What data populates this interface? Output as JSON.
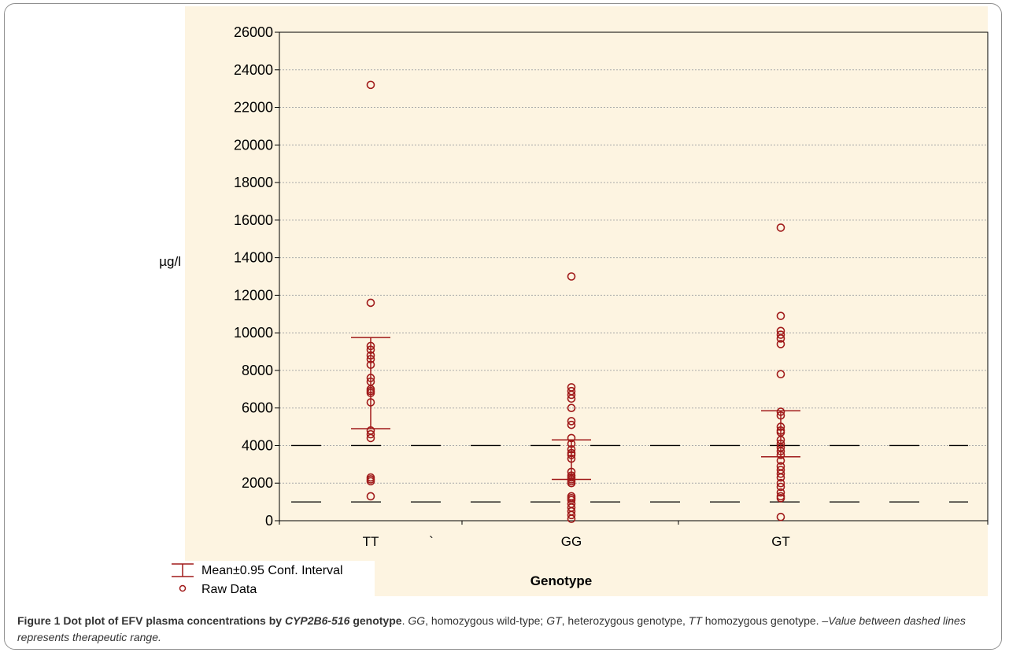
{
  "chart_data": {
    "type": "scatter",
    "title": "",
    "xlabel": "Genotype",
    "ylabel": "µg/l",
    "categories": [
      "TT",
      "GG",
      "GT"
    ],
    "ylim": [
      0,
      26000
    ],
    "yticks": [
      0,
      2000,
      4000,
      6000,
      8000,
      10000,
      12000,
      14000,
      16000,
      18000,
      20000,
      22000,
      24000,
      26000
    ],
    "grid": true,
    "stray_mark": "`",
    "reference_lines": [
      4000,
      1000
    ],
    "colors": {
      "background": "#fdf4e1",
      "points": "#a01a1a",
      "grid": "#aaaaaa",
      "axis": "#000000",
      "dashes": "#000000"
    },
    "legend": {
      "placement": "bottom-left",
      "entries": [
        {
          "marker": "error-bar",
          "label": "Mean±0.95 Conf. Interval"
        },
        {
          "marker": "circle",
          "label": "Raw Data"
        }
      ]
    },
    "series": [
      {
        "category": "TT",
        "raw": [
          23200,
          11600,
          9300,
          9100,
          8800,
          8600,
          8300,
          7600,
          7400,
          7000,
          6900,
          6800,
          6300,
          4800,
          4600,
          4400,
          2300,
          2200,
          2100,
          1300
        ],
        "mean": 7350,
        "ci": [
          4900,
          9750
        ]
      },
      {
        "category": "GG",
        "raw": [
          13000,
          7100,
          6900,
          6700,
          6500,
          6000,
          5300,
          5100,
          4400,
          4100,
          3800,
          3600,
          3500,
          3300,
          2600,
          2400,
          2300,
          2200,
          2100,
          2000,
          1300,
          1200,
          1100,
          900,
          700,
          500,
          300,
          100
        ],
        "mean": 3200,
        "ci": [
          2200,
          4300
        ]
      },
      {
        "category": "GT",
        "raw": [
          15600,
          10900,
          10100,
          9900,
          9700,
          9400,
          7800,
          5800,
          5600,
          5000,
          4800,
          4700,
          4300,
          4100,
          3900,
          3700,
          3500,
          3200,
          2900,
          2700,
          2500,
          2300,
          2000,
          1800,
          1500,
          1300,
          1200,
          200
        ],
        "mean": 4600,
        "ci": [
          3400,
          5850
        ]
      }
    ]
  },
  "caption": {
    "lead_a": "Figure 1 Dot plot of EFV plasma concentrations by ",
    "lead_gene": "CYP2B6-516",
    "lead_b": " genotype",
    "sep": ". ",
    "abbr_gg": "GG",
    "txt_gg": ", homozygous wild-type; ",
    "abbr_gt": "GT",
    "txt_gt": ", heterozygous genotype, ",
    "abbr_tt": "TT",
    "txt_tt": " homozygous genotype. –",
    "note": "Value between dashed lines represents therapeutic range."
  }
}
